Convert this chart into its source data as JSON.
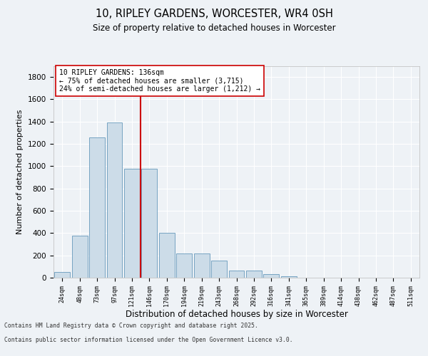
{
  "title1": "10, RIPLEY GARDENS, WORCESTER, WR4 0SH",
  "title2": "Size of property relative to detached houses in Worcester",
  "xlabel": "Distribution of detached houses by size in Worcester",
  "ylabel": "Number of detached properties",
  "categories": [
    "24sqm",
    "48sqm",
    "73sqm",
    "97sqm",
    "121sqm",
    "146sqm",
    "170sqm",
    "194sqm",
    "219sqm",
    "243sqm",
    "268sqm",
    "292sqm",
    "316sqm",
    "341sqm",
    "365sqm",
    "389sqm",
    "414sqm",
    "438sqm",
    "462sqm",
    "487sqm",
    "511sqm"
  ],
  "values": [
    50,
    375,
    1260,
    1390,
    980,
    975,
    400,
    215,
    220,
    155,
    65,
    65,
    30,
    10,
    3,
    3,
    2,
    1,
    1,
    1,
    1
  ],
  "bar_color": "#ccdce8",
  "bar_edge_color": "#6699bb",
  "vline_x": 4.5,
  "vline_color": "#cc0000",
  "annotation_text": "10 RIPLEY GARDENS: 136sqm\n← 75% of detached houses are smaller (3,715)\n24% of semi-detached houses are larger (1,212) →",
  "annotation_box_color": "#ffffff",
  "annotation_box_edge": "#cc0000",
  "ylim": [
    0,
    1900
  ],
  "yticks": [
    0,
    200,
    400,
    600,
    800,
    1000,
    1200,
    1400,
    1600,
    1800
  ],
  "footer1": "Contains HM Land Registry data © Crown copyright and database right 2025.",
  "footer2": "Contains public sector information licensed under the Open Government Licence v3.0.",
  "bg_color": "#eef2f6",
  "plot_bg_color": "#eef2f6"
}
